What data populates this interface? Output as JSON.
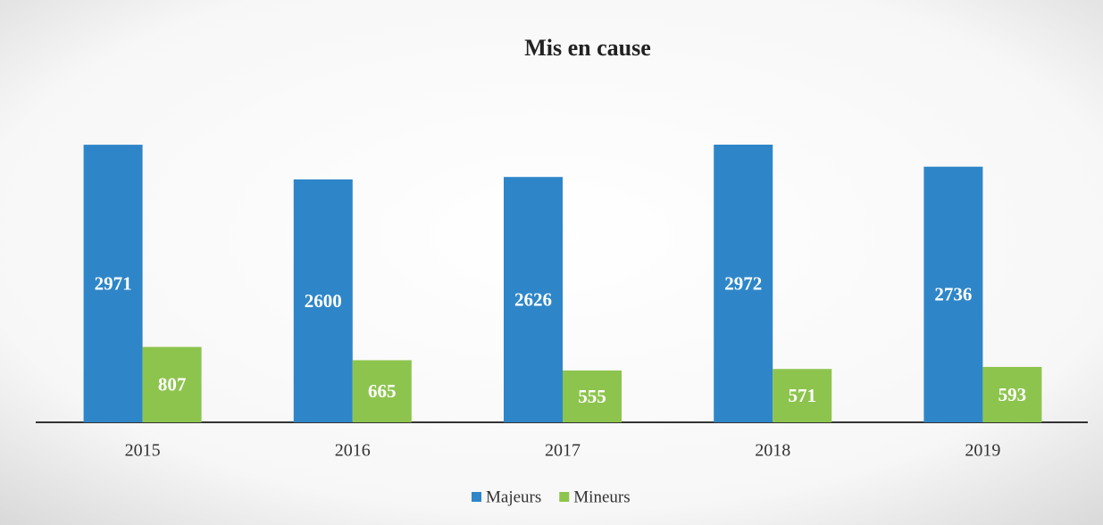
{
  "chart_data": {
    "type": "bar",
    "title": "Mis en cause",
    "categories": [
      "2015",
      "2016",
      "2017",
      "2018",
      "2019"
    ],
    "series": [
      {
        "name": "Majeurs",
        "color": "#2e86c8",
        "values": [
          2971,
          2600,
          2626,
          2972,
          2736
        ]
      },
      {
        "name": "Mineurs",
        "color": "#8dc44e",
        "values": [
          807,
          665,
          555,
          571,
          593
        ]
      }
    ],
    "legend": "bottom"
  }
}
